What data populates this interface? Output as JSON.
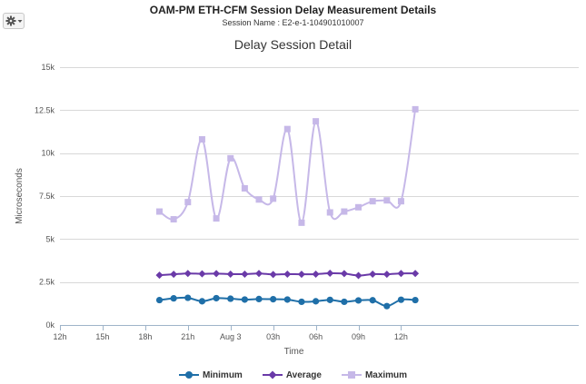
{
  "header": {
    "title": "OAM-PM ETH-CFM Session Delay Measurement Details",
    "session_line": "Session Name : E2-e-1-104901010007"
  },
  "toolbar": {
    "settings_icon": "gear-icon",
    "dropdown_icon": "caret-down-icon"
  },
  "chart_data": {
    "type": "line",
    "title": "Delay Session Detail",
    "xlabel": "Time",
    "ylabel": "Microseconds",
    "ylim": [
      0,
      15000
    ],
    "yticks": [
      0,
      2500,
      5000,
      7500,
      10000,
      12500,
      15000
    ],
    "ytick_labels": [
      "0k",
      "2.5k",
      "5k",
      "7.5k",
      "10k",
      "12.5k",
      "15k"
    ],
    "xlim_hours": [
      12,
      48.5
    ],
    "xticks": [
      {
        "h": 12,
        "label": "12h"
      },
      {
        "h": 15,
        "label": "15h"
      },
      {
        "h": 18,
        "label": "18h"
      },
      {
        "h": 21,
        "label": "21h"
      },
      {
        "h": 24,
        "label": "Aug 3"
      },
      {
        "h": 27,
        "label": "03h"
      },
      {
        "h": 30,
        "label": "06h"
      },
      {
        "h": 33,
        "label": "09h"
      },
      {
        "h": 36,
        "label": "12h"
      }
    ],
    "x_hours": [
      19,
      20,
      21,
      22,
      23,
      24,
      25,
      26,
      27,
      28,
      29,
      30,
      31,
      32,
      33,
      34,
      35,
      36,
      37
    ],
    "grid": true,
    "legend_position": "bottom-center",
    "series": [
      {
        "name": "Minimum",
        "color": "#1f6fa8",
        "marker": "circle",
        "values": [
          1450,
          1550,
          1580,
          1380,
          1560,
          1530,
          1480,
          1510,
          1500,
          1480,
          1350,
          1380,
          1460,
          1350,
          1430,
          1440,
          1100,
          1470,
          1450
        ]
      },
      {
        "name": "Average",
        "color": "#6a3aa8",
        "marker": "diamond",
        "values": [
          2900,
          2950,
          3000,
          2980,
          2990,
          2960,
          2960,
          3000,
          2940,
          2960,
          2950,
          2960,
          3010,
          2990,
          2880,
          2960,
          2950,
          3000,
          3000
        ]
      },
      {
        "name": "Maximum",
        "color": "#c6b8e8",
        "marker": "square",
        "values": [
          6600,
          6150,
          7150,
          10800,
          6200,
          9700,
          7950,
          7300,
          7350,
          11400,
          5950,
          11850,
          6550,
          6600,
          6850,
          7200,
          7250,
          7200,
          12550
        ]
      }
    ]
  }
}
